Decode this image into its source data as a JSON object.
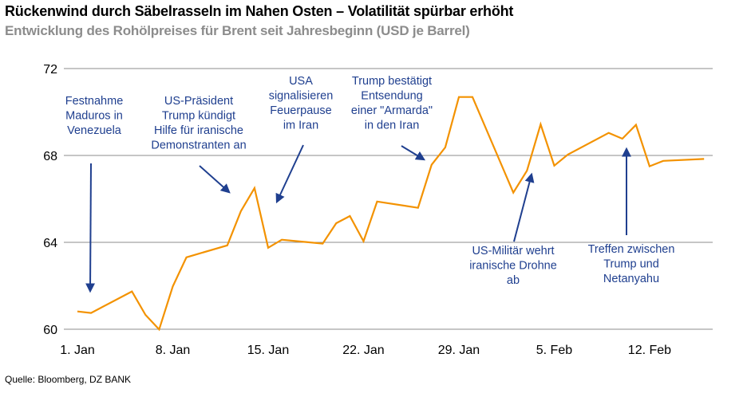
{
  "chart_data": {
    "type": "line",
    "title": "Rückenwind durch Säbelrasseln im Nahen Osten – Volatilität spürbar erhöht",
    "subtitle": "Entwicklung des Rohölpreises für Brent seit Jahresbeginn (USD je Barrel)",
    "source": "Quelle: Bloomberg, DZ BANK",
    "xlabel": "",
    "ylabel": "",
    "ylim": [
      60,
      72
    ],
    "yticks": [
      "60",
      "64",
      "68",
      "72"
    ],
    "xticks": [
      {
        "date": "2026-01-01",
        "label": "1. Jan"
      },
      {
        "date": "2026-01-08",
        "label": "8. Jan"
      },
      {
        "date": "2026-01-15",
        "label": "15. Jan"
      },
      {
        "date": "2026-01-22",
        "label": "22. Jan"
      },
      {
        "date": "2026-01-29",
        "label": "29. Jan"
      },
      {
        "date": "2026-02-05",
        "label": "5. Feb"
      },
      {
        "date": "2026-02-12",
        "label": "12. Feb"
      }
    ],
    "xlim": [
      "2026-01-01",
      "2026-02-16"
    ],
    "grid": "horizontal",
    "line_color": "#f39200",
    "annotation_color": "#1f3f8f",
    "series": [
      {
        "points": [
          [
            "2026-01-01",
            60.82
          ],
          [
            "2026-01-02",
            60.75
          ],
          [
            "2026-01-05",
            61.74
          ],
          [
            "2026-01-06",
            60.66
          ],
          [
            "2026-01-07",
            59.99
          ],
          [
            "2026-01-08",
            61.97
          ],
          [
            "2026-01-09",
            63.31
          ],
          [
            "2026-01-12",
            63.86
          ],
          [
            "2026-01-13",
            65.43
          ],
          [
            "2026-01-14",
            66.5
          ],
          [
            "2026-01-15",
            63.75
          ],
          [
            "2026-01-16",
            64.12
          ],
          [
            "2026-01-19",
            63.94
          ],
          [
            "2026-01-20",
            64.88
          ],
          [
            "2026-01-21",
            65.21
          ],
          [
            "2026-01-22",
            64.05
          ],
          [
            "2026-01-23",
            65.88
          ],
          [
            "2026-01-26",
            65.59
          ],
          [
            "2026-01-27",
            67.57
          ],
          [
            "2026-01-28",
            68.37
          ],
          [
            "2026-01-29",
            70.69
          ],
          [
            "2026-01-30",
            70.69
          ],
          [
            "2026-02-02",
            66.29
          ],
          [
            "2026-02-03",
            67.3
          ],
          [
            "2026-02-04",
            69.43
          ],
          [
            "2026-02-05",
            67.53
          ],
          [
            "2026-02-06",
            68.04
          ],
          [
            "2026-02-09",
            69.04
          ],
          [
            "2026-02-10",
            68.77
          ],
          [
            "2026-02-11",
            69.41
          ],
          [
            "2026-02-12",
            67.5
          ],
          [
            "2026-02-13",
            67.75
          ],
          [
            "2026-02-16",
            67.84
          ]
        ]
      }
    ],
    "annotations": [
      {
        "lines": [
          "Festnahme",
          "Maduros in",
          "Venezuela"
        ]
      },
      {
        "lines": [
          "US-Präsident",
          "Trump  kündigt",
          "Hilfe  für  iranische",
          "Demonstranten  an"
        ]
      },
      {
        "lines": [
          "USA",
          "signalisieren",
          "Feuerpause",
          "im Iran"
        ]
      },
      {
        "lines": [
          "Trump  bestätigt",
          "Entsendung",
          "einer  \"Armarda\"",
          "in den Iran"
        ]
      },
      {
        "lines": [
          "US-Militär  wehrt",
          "iranische  Drohne",
          "ab"
        ]
      },
      {
        "lines": [
          "Treffen  zwischen",
          "Trump  und",
          "Netanyahu"
        ]
      }
    ]
  }
}
